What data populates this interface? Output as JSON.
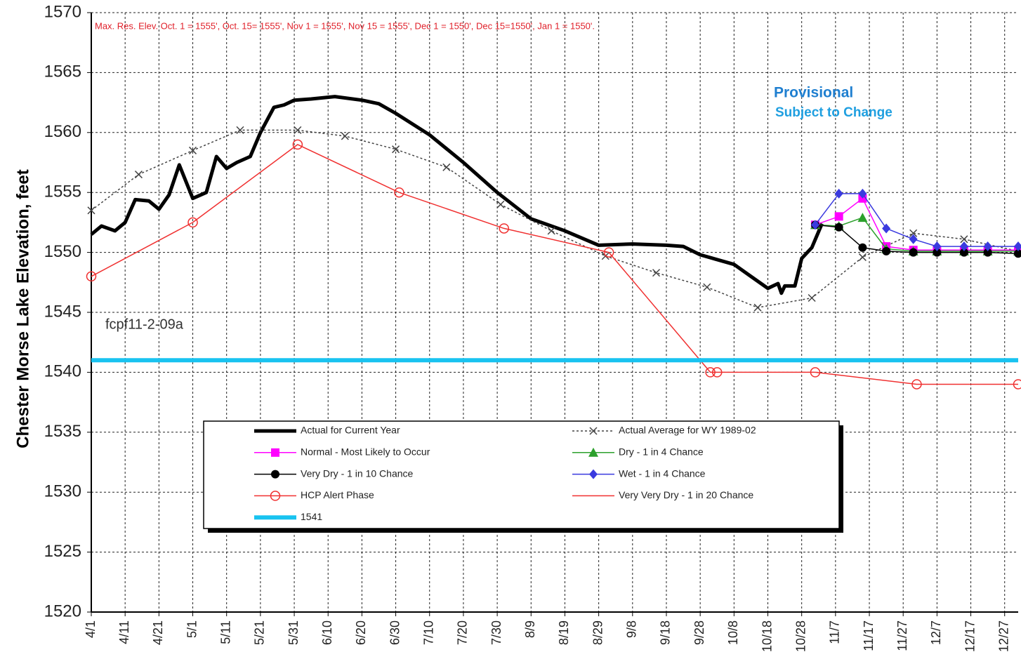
{
  "chart_data": {
    "type": "line",
    "y_label": "Chester Morse Lake Elevation, feet",
    "annotations": [
      {
        "text": "Max. Res. Elev.    Oct. 1 =  1555',  Oct. 15= 1555',  Nov 1 =  1555',  Nov 15 = 1555',  Dec 1 = 1550',  Dec 15=1550', Jan  1 = 1550'.",
        "color": "#e0202a"
      },
      {
        "text": "Provisional",
        "color": "#1f7fd0"
      },
      {
        "text": "Subject to Change",
        "color": "#1f9fe0"
      },
      {
        "text": "fcpf11-2-09a",
        "color": "#333333"
      }
    ],
    "xlim": [
      "4/1",
      "12/31"
    ],
    "xticks": [
      "4/1",
      "4/11",
      "4/21",
      "5/1",
      "5/11",
      "5/21",
      "5/31",
      "6/10",
      "6/20",
      "6/30",
      "7/10",
      "7/20",
      "7/30",
      "8/9",
      "8/19",
      "8/29",
      "9/8",
      "9/18",
      "9/28",
      "10/8",
      "10/18",
      "10/28",
      "11/7",
      "11/17",
      "11/27",
      "12/7",
      "12/17",
      "12/27"
    ],
    "ylim": [
      1520,
      1570
    ],
    "yticks": [
      1520,
      1525,
      1530,
      1535,
      1540,
      1545,
      1550,
      1555,
      1560,
      1565,
      1570
    ],
    "grid": true,
    "series": [
      {
        "name": "Actual for Current Year",
        "color": "#000000",
        "width": 5,
        "dash": "solid",
        "marker": "none",
        "x": [
          "4/1",
          "4/4",
          "4/8",
          "4/11",
          "4/14",
          "4/18",
          "4/21",
          "4/24",
          "4/27",
          "5/1",
          "5/5",
          "5/8",
          "5/11",
          "5/14",
          "5/18",
          "5/21",
          "5/25",
          "5/28",
          "5/31",
          "6/5",
          "6/12",
          "6/20",
          "6/25",
          "6/30",
          "7/10",
          "7/20",
          "7/30",
          "8/9",
          "8/19",
          "8/29",
          "9/8",
          "9/18",
          "9/23",
          "9/28",
          "10/8",
          "10/13",
          "10/18",
          "10/21",
          "10/22",
          "10/23",
          "10/26",
          "10/28",
          "10/31",
          "11/3"
        ],
        "values": [
          1551.5,
          1552.2,
          1551.8,
          1552.5,
          1554.4,
          1554.3,
          1553.6,
          1554.8,
          1557.3,
          1554.5,
          1555.0,
          1558.0,
          1557.0,
          1557.5,
          1558.0,
          1560.0,
          1562.1,
          1562.3,
          1562.7,
          1562.8,
          1563.0,
          1562.7,
          1562.4,
          1561.6,
          1559.8,
          1557.5,
          1555.0,
          1552.8,
          1551.8,
          1550.6,
          1550.7,
          1550.6,
          1550.5,
          1549.8,
          1549.0,
          1548.0,
          1547.0,
          1547.4,
          1546.6,
          1547.2,
          1547.2,
          1549.5,
          1550.4,
          1552.4
        ]
      },
      {
        "name": "Actual Average for WY 1989-02",
        "color": "#444444",
        "width": 1.5,
        "dash": "dotted",
        "marker": "x",
        "x": [
          "4/1",
          "4/15",
          "5/1",
          "5/15",
          "6/1",
          "6/15",
          "6/30",
          "7/15",
          "7/31",
          "8/15",
          "8/31",
          "9/15",
          "9/30",
          "10/15",
          "10/31",
          "11/15",
          "11/30",
          "12/15",
          "12/31"
        ],
        "values": [
          1553.5,
          1556.5,
          1558.5,
          1560.2,
          1560.2,
          1559.7,
          1558.6,
          1557.1,
          1554.0,
          1551.8,
          1549.7,
          1548.3,
          1547.1,
          1545.4,
          1546.2,
          1549.6,
          1551.6,
          1551.1,
          1550.1
        ]
      },
      {
        "name": "Normal - Most Likely to Occur",
        "color": "#ff00ff",
        "width": 1.5,
        "dash": "solid",
        "marker": "square",
        "x": [
          "11/1",
          "11/8",
          "11/15",
          "11/22",
          "11/30",
          "12/7",
          "12/15",
          "12/22",
          "12/31"
        ],
        "values": [
          1552.3,
          1553.0,
          1554.5,
          1550.5,
          1550.2,
          1550.2,
          1550.2,
          1550.2,
          1550.2
        ]
      },
      {
        "name": "Dry - 1 in 4 Chance",
        "color": "#2ca02c",
        "width": 1.5,
        "dash": "solid",
        "marker": "triangle",
        "x": [
          "11/1",
          "11/8",
          "11/15",
          "11/22",
          "11/30",
          "12/7",
          "12/15",
          "12/22",
          "12/31"
        ],
        "values": [
          1552.3,
          1552.2,
          1552.9,
          1550.3,
          1550.1,
          1550.1,
          1550.1,
          1550.1,
          1550.1
        ]
      },
      {
        "name": "Very Dry - 1 in 10 Chance",
        "color": "#000000",
        "width": 1.5,
        "dash": "solid",
        "marker": "circle",
        "x": [
          "11/1",
          "11/8",
          "11/15",
          "11/22",
          "11/30",
          "12/7",
          "12/15",
          "12/22",
          "12/31"
        ],
        "values": [
          1552.3,
          1552.1,
          1550.4,
          1550.1,
          1550.0,
          1550.0,
          1550.0,
          1550.0,
          1549.9
        ]
      },
      {
        "name": "Wet - 1 in 4 Chance",
        "color": "#3a3adf",
        "width": 1.5,
        "dash": "solid",
        "marker": "diamond",
        "x": [
          "11/1",
          "11/8",
          "11/15",
          "11/22",
          "11/30",
          "12/7",
          "12/15",
          "12/22",
          "12/31"
        ],
        "values": [
          1552.3,
          1554.9,
          1554.9,
          1552.0,
          1551.1,
          1550.5,
          1550.5,
          1550.5,
          1550.5
        ]
      },
      {
        "name": "HCP Alert Phase",
        "color": "#f03030",
        "width": 1.5,
        "dash": "solid",
        "marker": "open-circle",
        "x": [
          "4/1",
          "5/1",
          "6/1",
          "7/1",
          "8/1",
          "9/1",
          "10/1",
          "10/3",
          "11/1",
          "12/1",
          "12/31"
        ],
        "values": [
          1548,
          1552.5,
          1559,
          1555,
          1552,
          1550,
          1540,
          1540,
          1540,
          1539,
          1539
        ]
      },
      {
        "name": "Very Very Dry - 1 in 20 Chance",
        "color": "#f03030",
        "width": 1.5,
        "dash": "solid",
        "marker": "none",
        "x": [],
        "values": []
      },
      {
        "name": "1541",
        "color": "#19c3f0",
        "width": 6,
        "dash": "solid",
        "marker": "none",
        "x": [
          "4/1",
          "12/31"
        ],
        "values": [
          1541,
          1541
        ]
      }
    ]
  }
}
